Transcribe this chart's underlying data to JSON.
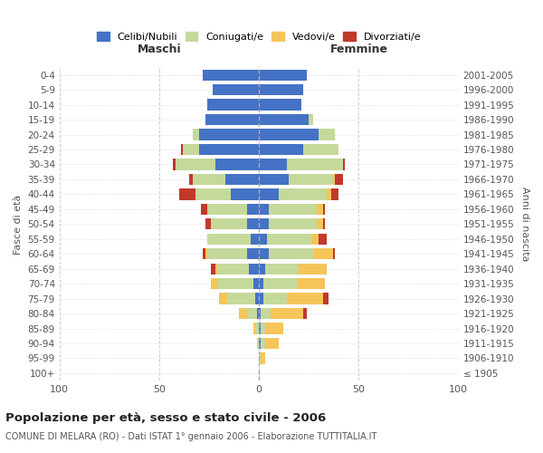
{
  "age_groups": [
    "100+",
    "95-99",
    "90-94",
    "85-89",
    "80-84",
    "75-79",
    "70-74",
    "65-69",
    "60-64",
    "55-59",
    "50-54",
    "45-49",
    "40-44",
    "35-39",
    "30-34",
    "25-29",
    "20-24",
    "15-19",
    "10-14",
    "5-9",
    "0-4"
  ],
  "birth_years": [
    "≤ 1905",
    "1906-1910",
    "1911-1915",
    "1916-1920",
    "1921-1925",
    "1926-1930",
    "1931-1935",
    "1936-1940",
    "1941-1945",
    "1946-1950",
    "1951-1955",
    "1956-1960",
    "1961-1965",
    "1966-1970",
    "1971-1975",
    "1976-1980",
    "1981-1985",
    "1986-1990",
    "1991-1995",
    "1996-2000",
    "2001-2005"
  ],
  "males": {
    "celibi": [
      0,
      0,
      0,
      0,
      1,
      2,
      3,
      5,
      6,
      4,
      6,
      6,
      14,
      17,
      22,
      30,
      30,
      27,
      26,
      23,
      28
    ],
    "coniugati": [
      0,
      0,
      1,
      2,
      5,
      14,
      18,
      16,
      20,
      22,
      18,
      20,
      18,
      16,
      20,
      8,
      3,
      0,
      0,
      0,
      0
    ],
    "vedovi": [
      0,
      0,
      0,
      1,
      4,
      4,
      3,
      1,
      1,
      0,
      0,
      0,
      0,
      0,
      0,
      0,
      0,
      0,
      0,
      0,
      0
    ],
    "divorziati": [
      0,
      0,
      0,
      0,
      0,
      0,
      0,
      2,
      1,
      0,
      3,
      3,
      8,
      2,
      1,
      1,
      0,
      0,
      0,
      0,
      0
    ]
  },
  "females": {
    "nubili": [
      0,
      0,
      1,
      1,
      1,
      2,
      2,
      3,
      5,
      4,
      5,
      5,
      10,
      15,
      14,
      22,
      30,
      25,
      21,
      22,
      24
    ],
    "coniugate": [
      0,
      1,
      2,
      2,
      5,
      12,
      17,
      17,
      22,
      22,
      24,
      24,
      24,
      22,
      28,
      18,
      8,
      2,
      0,
      0,
      0
    ],
    "vedove": [
      0,
      2,
      7,
      9,
      16,
      18,
      14,
      14,
      10,
      4,
      3,
      3,
      2,
      1,
      0,
      0,
      0,
      0,
      0,
      0,
      0
    ],
    "divorziate": [
      0,
      0,
      0,
      0,
      2,
      3,
      0,
      0,
      1,
      4,
      1,
      1,
      4,
      4,
      1,
      0,
      0,
      0,
      0,
      0,
      0
    ]
  },
  "colors": {
    "celibi": "#4472c4",
    "coniugati": "#c5d99b",
    "vedovi": "#f5c55a",
    "divorziati": "#c0392b"
  },
  "legend_labels": [
    "Celibi/Nubili",
    "Coniugati/e",
    "Vedovi/e",
    "Divorziati/e"
  ],
  "title": "Popolazione per età, sesso e stato civile - 2006",
  "subtitle": "COMUNE DI MELARA (RO) - Dati ISTAT 1° gennaio 2006 - Elaborazione TUTTITALIA.IT",
  "xlabel_left": "Maschi",
  "xlabel_right": "Femmine",
  "ylabel_left": "Fasce di età",
  "ylabel_right": "Anni di nascita",
  "xlim": 100,
  "bg_color": "#ffffff",
  "grid_color": "#cccccc"
}
